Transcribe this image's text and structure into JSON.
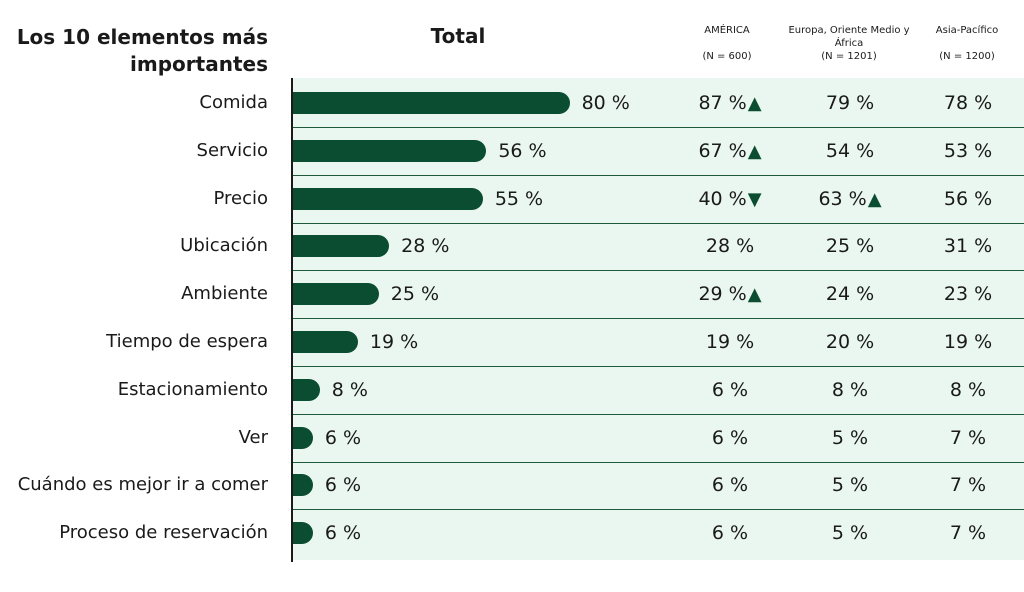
{
  "header": {
    "title": "Los 10 elementos más importantes",
    "total": "Total",
    "columns": [
      {
        "name": "AMÉRICA",
        "n": "(N = 600)"
      },
      {
        "name": "Europa, Oriente Medio y África",
        "n": "(N = 1201)"
      },
      {
        "name": "Asia-Pacífico",
        "n": "(N = 1200)"
      }
    ]
  },
  "chart_data": {
    "type": "bar",
    "orientation": "horizontal",
    "title": "Los 10 elementos más importantes",
    "categories": [
      "Comida",
      "Servicio",
      "Precio",
      "Ubicación",
      "Ambiente",
      "Tiempo de espera",
      "Estacionamiento",
      "Ver",
      "Cuándo es mejor ir a comer",
      "Proceso de reservación"
    ],
    "series": [
      {
        "name": "Total",
        "values": [
          80,
          56,
          55,
          28,
          25,
          19,
          8,
          6,
          6,
          6
        ]
      },
      {
        "name": "AMÉRICA",
        "values": [
          87,
          67,
          40,
          28,
          29,
          19,
          6,
          6,
          6,
          6
        ]
      },
      {
        "name": "Europa, Oriente Medio y África",
        "values": [
          79,
          54,
          63,
          25,
          24,
          20,
          8,
          5,
          5,
          5
        ]
      },
      {
        "name": "Asia-Pacífico",
        "values": [
          78,
          53,
          56,
          31,
          23,
          19,
          8,
          7,
          7,
          7
        ]
      }
    ],
    "significance": {
      "AMÉRICA": [
        "up",
        "up",
        "down",
        "",
        "up",
        "",
        "",
        "",
        "",
        ""
      ],
      "Europa, Oriente Medio y África": [
        "",
        "",
        "up",
        "",
        "",
        "",
        "",
        "",
        "",
        ""
      ],
      "Asia-Pacífico": [
        "",
        "",
        "",
        "",
        "",
        "",
        "",
        "",
        "",
        ""
      ]
    },
    "value_suffix": " %",
    "xlim": [
      0,
      100
    ],
    "colors": {
      "bar": "#0b4d30",
      "panel": "#eaf7f0",
      "divider": "#1f5a3d",
      "marker": "#0b4d30"
    }
  }
}
